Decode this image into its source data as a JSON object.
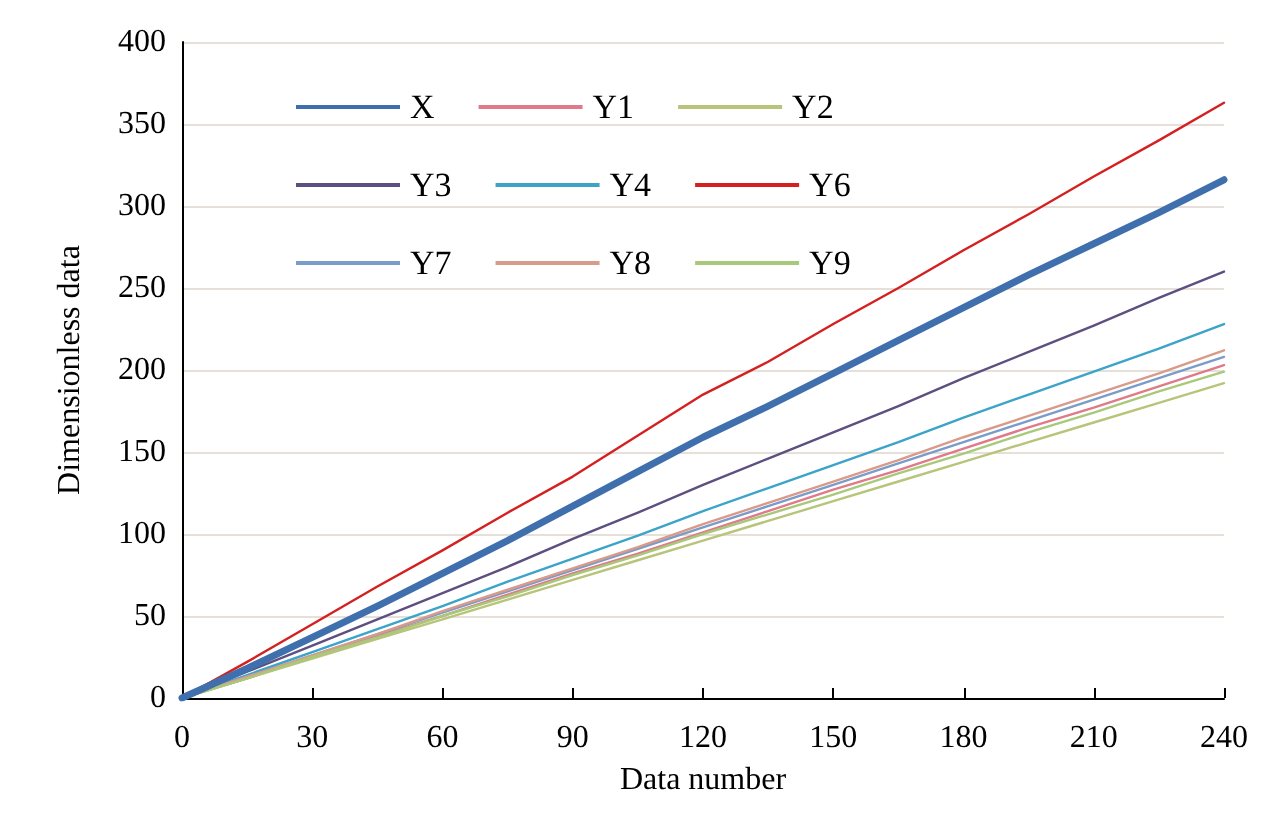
{
  "chart_data": {
    "type": "line",
    "xlabel": "Data number",
    "ylabel": "Dimensionless data",
    "x": [
      0,
      15,
      30,
      45,
      60,
      75,
      90,
      105,
      120,
      135,
      150,
      165,
      180,
      195,
      210,
      225,
      240
    ],
    "xlim": [
      0,
      240
    ],
    "xticks": [
      0,
      30,
      60,
      90,
      120,
      150,
      180,
      210,
      240
    ],
    "ylim": [
      0,
      400
    ],
    "yticks": [
      0,
      50,
      100,
      150,
      200,
      250,
      300,
      350,
      400
    ],
    "grid": "y",
    "legend": "top left",
    "marker": "none",
    "line_style": "solid",
    "series": [
      {
        "name": "X",
        "color": "#3f6fad",
        "values": [
          0,
          18,
          37,
          56,
          76,
          96,
          117,
          138,
          159,
          178,
          198,
          218,
          238,
          258,
          277,
          296,
          316
        ]
      },
      {
        "name": "Y1",
        "color": "#e07a8a",
        "values": [
          0,
          12,
          25,
          38,
          50,
          63,
          76,
          88,
          101,
          114,
          127,
          139,
          152,
          165,
          177,
          190,
          203
        ]
      },
      {
        "name": "Y2",
        "color": "#b8c47a",
        "values": [
          0,
          12,
          24,
          36,
          48,
          60,
          72,
          84,
          96,
          108,
          120,
          132,
          144,
          156,
          168,
          180,
          192
        ]
      },
      {
        "name": "Y3",
        "color": "#5d4f7f",
        "values": [
          0,
          16,
          32,
          48,
          64,
          80,
          97,
          113,
          130,
          146,
          162,
          178,
          195,
          211,
          227,
          244,
          260
        ]
      },
      {
        "name": "Y4",
        "color": "#3ba4c8",
        "values": [
          0,
          14,
          28,
          42,
          56,
          71,
          85,
          99,
          114,
          128,
          142,
          156,
          171,
          185,
          199,
          213,
          228
        ]
      },
      {
        "name": "Y6",
        "color": "#d42020",
        "values": [
          0,
          22,
          45,
          68,
          90,
          113,
          135,
          160,
          185,
          205,
          228,
          250,
          273,
          295,
          318,
          340,
          363
        ]
      },
      {
        "name": "Y7",
        "color": "#7a9cc8",
        "values": [
          0,
          13,
          26,
          39,
          52,
          65,
          78,
          91,
          104,
          117,
          130,
          143,
          156,
          169,
          182,
          195,
          208
        ]
      },
      {
        "name": "Y8",
        "color": "#d99a8a",
        "values": [
          0,
          13,
          26,
          39,
          53,
          66,
          79,
          92,
          106,
          119,
          132,
          145,
          159,
          172,
          185,
          198,
          212
        ]
      },
      {
        "name": "Y9",
        "color": "#a9c97a",
        "values": [
          0,
          12,
          25,
          37,
          50,
          62,
          75,
          87,
          100,
          112,
          124,
          137,
          149,
          162,
          174,
          187,
          199
        ]
      }
    ]
  }
}
